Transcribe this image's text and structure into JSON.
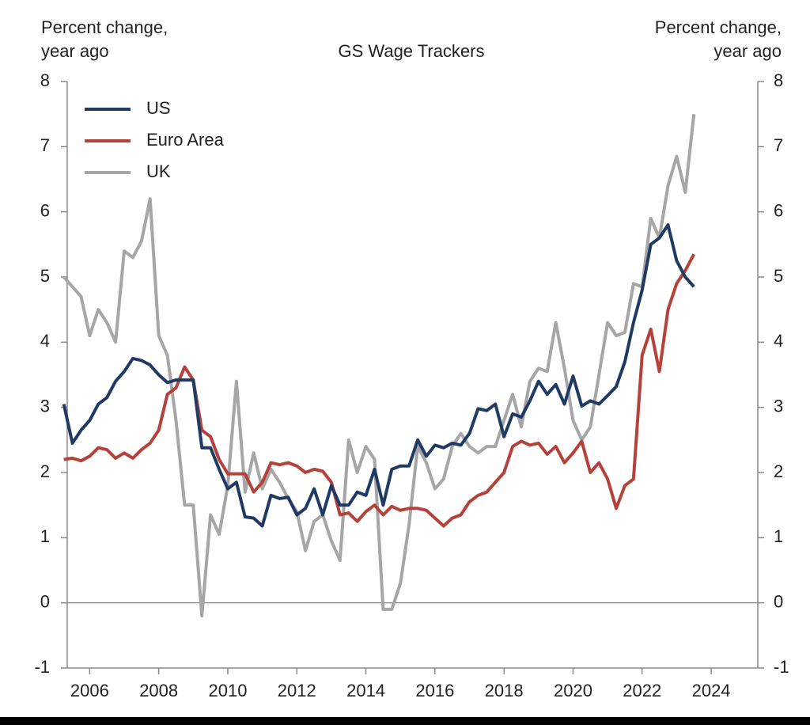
{
  "chart_data": {
    "type": "line",
    "title": "GS Wage Trackers",
    "ylabel": [
      "Percent change,",
      "year ago"
    ],
    "y2label": [
      "Percent change,",
      "year ago"
    ],
    "x": [
      2005.25,
      2005.5,
      2005.75,
      2006,
      2006.25,
      2006.5,
      2006.75,
      2007,
      2007.25,
      2007.5,
      2007.75,
      2008,
      2008.25,
      2008.5,
      2008.75,
      2009,
      2009.25,
      2009.5,
      2009.75,
      2010,
      2010.25,
      2010.5,
      2010.75,
      2011,
      2011.25,
      2011.5,
      2011.75,
      2012,
      2012.25,
      2012.5,
      2012.75,
      2013,
      2013.25,
      2013.5,
      2013.75,
      2014,
      2014.25,
      2014.5,
      2014.75,
      2015,
      2015.25,
      2015.5,
      2015.75,
      2016,
      2016.25,
      2016.5,
      2016.75,
      2017,
      2017.25,
      2017.5,
      2017.75,
      2018,
      2018.25,
      2018.5,
      2018.75,
      2019,
      2019.25,
      2019.5,
      2019.75,
      2020,
      2020.25,
      2020.5,
      2020.75,
      2021,
      2021.25,
      2021.5,
      2021.75,
      2022,
      2022.25,
      2022.5,
      2022.75,
      2023,
      2023.25,
      2023.5
    ],
    "series": [
      {
        "name": "US",
        "color": "#1f3b64",
        "values": [
          3.05,
          2.45,
          2.65,
          2.8,
          3.05,
          3.15,
          3.4,
          3.55,
          3.75,
          3.72,
          3.65,
          3.5,
          3.38,
          3.42,
          3.42,
          3.42,
          2.38,
          2.38,
          2.05,
          1.75,
          1.85,
          1.32,
          1.3,
          1.18,
          1.65,
          1.6,
          1.62,
          1.35,
          1.45,
          1.75,
          1.35,
          1.8,
          1.5,
          1.5,
          1.7,
          1.65,
          2.05,
          1.5,
          2.05,
          2.1,
          2.1,
          2.5,
          2.25,
          2.42,
          2.38,
          2.45,
          2.42,
          2.6,
          2.98,
          2.95,
          3.05,
          2.55,
          2.9,
          2.85,
          3.1,
          3.4,
          3.2,
          3.35,
          3.05,
          3.48,
          3.02,
          3.1,
          3.05,
          3.18,
          3.32,
          3.7,
          4.3,
          4.8,
          5.5,
          5.6,
          5.8,
          5.25,
          5.0,
          4.85
        ]
      },
      {
        "name": "Euro Area",
        "color": "#b5413b",
        "values": [
          2.2,
          2.22,
          2.18,
          2.25,
          2.38,
          2.35,
          2.22,
          2.3,
          2.22,
          2.35,
          2.45,
          2.65,
          3.2,
          3.3,
          3.62,
          3.42,
          2.65,
          2.55,
          2.2,
          1.98,
          1.98,
          1.98,
          1.7,
          1.85,
          2.15,
          2.12,
          2.15,
          2.1,
          2.0,
          2.05,
          2.02,
          1.85,
          1.35,
          1.38,
          1.25,
          1.4,
          1.5,
          1.35,
          1.48,
          1.42,
          1.45,
          1.45,
          1.42,
          1.3,
          1.18,
          1.3,
          1.35,
          1.55,
          1.65,
          1.7,
          1.85,
          2.0,
          2.4,
          2.48,
          2.42,
          2.45,
          2.28,
          2.4,
          2.15,
          2.3,
          2.48,
          2.0,
          2.15,
          1.9,
          1.45,
          1.8,
          1.9,
          3.8,
          4.2,
          3.55,
          4.5,
          4.9,
          5.1,
          5.35
        ]
      },
      {
        "name": "UK",
        "color": "#a6a6a6",
        "values": [
          5.0,
          4.85,
          4.7,
          4.1,
          4.5,
          4.3,
          4.0,
          5.4,
          5.3,
          5.55,
          6.2,
          4.1,
          3.8,
          2.8,
          1.5,
          1.5,
          -0.2,
          1.35,
          1.05,
          1.8,
          3.4,
          1.7,
          2.3,
          1.75,
          2.05,
          1.85,
          1.6,
          1.4,
          0.8,
          1.25,
          1.35,
          0.95,
          0.65,
          2.5,
          2.0,
          2.4,
          2.2,
          -0.1,
          -0.1,
          0.3,
          1.2,
          2.4,
          2.15,
          1.75,
          1.9,
          2.4,
          2.6,
          2.4,
          2.3,
          2.4,
          2.4,
          2.8,
          3.2,
          2.7,
          3.4,
          3.6,
          3.55,
          4.3,
          3.6,
          2.8,
          2.5,
          2.7,
          3.5,
          4.3,
          4.1,
          4.15,
          4.9,
          4.85,
          5.9,
          5.6,
          6.4,
          6.85,
          6.3,
          7.5
        ]
      }
    ],
    "xlim": [
      2005.35,
      2025.35
    ],
    "xticks": [
      2006,
      2008,
      2010,
      2012,
      2014,
      2016,
      2018,
      2020,
      2022,
      2024
    ],
    "ylim": [
      -1,
      8
    ],
    "yticks": [
      -1,
      0,
      1,
      2,
      3,
      4,
      5,
      6,
      7,
      8
    ],
    "y2lim": [
      -1,
      8
    ],
    "y2ticks": [
      -1,
      0,
      1,
      2,
      3,
      4,
      5,
      6,
      7,
      8
    ],
    "zero_line": true,
    "legend": "upper left"
  }
}
